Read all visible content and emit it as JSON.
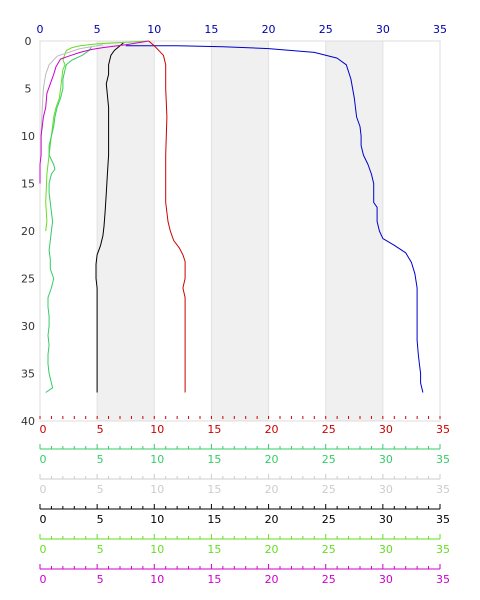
{
  "chart_data": {
    "type": "line",
    "title": "",
    "ylim": [
      0,
      40
    ],
    "y_ticks": [
      "0",
      "5",
      "10",
      "15",
      "20",
      "25",
      "30",
      "35",
      "40"
    ],
    "y_inverted": true,
    "background_bands": [
      [
        5,
        10
      ],
      [
        15,
        20
      ],
      [
        25,
        30
      ]
    ],
    "top_axis": {
      "color": "#0000aa",
      "ticks": [
        "0",
        "5",
        "10",
        "15",
        "20",
        "25",
        "30",
        "35"
      ]
    },
    "bottom_axes": [
      {
        "name": "",
        "color": "#cc0000",
        "ticks": [
          "0",
          "5",
          "10",
          "15",
          "20",
          "25",
          "30",
          "35"
        ]
      },
      {
        "name": "",
        "color": "#33cc66",
        "ticks": [
          "0",
          "5",
          "10",
          "15",
          "20",
          "25",
          "30",
          "35"
        ]
      },
      {
        "name": "",
        "color": "#cccccc",
        "ticks": [
          "0",
          "5",
          "10",
          "15",
          "20",
          "25",
          "30",
          "35"
        ]
      },
      {
        "name": "",
        "color": "#000000",
        "ticks": [
          "0",
          "5",
          "10",
          "15",
          "20",
          "25",
          "30",
          "35"
        ]
      },
      {
        "name": "",
        "color": "#66dd22",
        "ticks": [
          "0",
          "5",
          "10",
          "15",
          "20",
          "25",
          "30",
          "35"
        ]
      },
      {
        "name": "",
        "color": "#cc00cc",
        "ticks": [
          "0",
          "5",
          "10",
          "15",
          "20",
          "25",
          "30",
          "35"
        ]
      }
    ],
    "series": [
      {
        "color": "#0000cc",
        "points": [
          [
            7.5,
            0.5
          ],
          [
            12,
            0.5
          ],
          [
            16,
            0.6
          ],
          [
            20,
            0.8
          ],
          [
            24,
            1.2
          ],
          [
            26,
            1.8
          ],
          [
            26.8,
            2.5
          ],
          [
            27.2,
            4
          ],
          [
            27.5,
            6
          ],
          [
            27.7,
            8
          ],
          [
            28,
            9
          ],
          [
            28.1,
            10
          ],
          [
            28.1,
            11
          ],
          [
            28.3,
            12
          ],
          [
            28.7,
            13
          ],
          [
            29,
            14
          ],
          [
            29.2,
            15
          ],
          [
            29.2,
            16
          ],
          [
            29.2,
            17
          ],
          [
            29.5,
            17.5
          ],
          [
            29.5,
            18
          ],
          [
            29.5,
            19
          ],
          [
            29.7,
            20
          ],
          [
            30,
            20.8
          ],
          [
            31,
            21.5
          ],
          [
            32,
            22.3
          ],
          [
            32.5,
            23.3
          ],
          [
            32.8,
            24.5
          ],
          [
            33,
            26
          ],
          [
            33,
            28
          ],
          [
            33,
            30
          ],
          [
            33,
            31.5
          ],
          [
            33.1,
            33
          ],
          [
            33.2,
            34
          ],
          [
            33.3,
            35
          ],
          [
            33.3,
            36
          ],
          [
            33.5,
            37
          ]
        ]
      },
      {
        "color": "#cc0000",
        "points": [
          [
            9.5,
            0
          ],
          [
            10,
            0.5
          ],
          [
            10.8,
            1.5
          ],
          [
            11,
            2.5
          ],
          [
            11,
            5
          ],
          [
            11.1,
            8
          ],
          [
            11,
            12
          ],
          [
            11,
            15
          ],
          [
            11,
            17
          ],
          [
            11.2,
            19
          ],
          [
            11.4,
            20
          ],
          [
            11.7,
            21
          ],
          [
            12.2,
            21.8
          ],
          [
            12.5,
            22.5
          ],
          [
            12.7,
            23.2
          ],
          [
            12.7,
            25
          ],
          [
            12.5,
            26
          ],
          [
            12.7,
            27
          ],
          [
            12.7,
            30
          ],
          [
            12.7,
            33
          ],
          [
            12.7,
            35
          ],
          [
            12.7,
            37
          ]
        ]
      },
      {
        "color": "#000000",
        "points": [
          [
            7.3,
            0.2
          ],
          [
            7,
            0.5
          ],
          [
            6.5,
            1
          ],
          [
            6.2,
            1.5
          ],
          [
            6,
            2.5
          ],
          [
            6,
            3.5
          ],
          [
            5.8,
            4.5
          ],
          [
            6,
            7
          ],
          [
            6,
            10
          ],
          [
            6,
            12
          ],
          [
            5.9,
            14
          ],
          [
            5.8,
            16
          ],
          [
            5.7,
            18
          ],
          [
            5.6,
            19.5
          ],
          [
            5.5,
            20.5
          ],
          [
            5.3,
            21.5
          ],
          [
            5,
            22.5
          ],
          [
            4.9,
            23.5
          ],
          [
            4.9,
            25
          ],
          [
            5,
            26
          ],
          [
            5,
            28
          ],
          [
            5,
            31
          ],
          [
            5,
            34
          ],
          [
            5,
            37
          ]
        ]
      },
      {
        "color": "#66dd22",
        "points": [
          [
            9.5,
            0
          ],
          [
            5,
            0.3
          ],
          [
            3.5,
            0.5
          ],
          [
            2.8,
            0.7
          ],
          [
            2.3,
            1
          ],
          [
            2,
            2
          ],
          [
            2.2,
            2.5
          ],
          [
            2,
            3
          ],
          [
            1.8,
            5
          ],
          [
            1.7,
            6
          ],
          [
            1.4,
            7
          ],
          [
            1.2,
            8
          ],
          [
            1,
            10
          ],
          [
            0.8,
            12
          ],
          [
            0.6,
            14
          ],
          [
            0.5,
            17
          ],
          [
            0.6,
            19
          ],
          [
            0.5,
            20
          ]
        ]
      },
      {
        "color": "#33cc66",
        "points": [
          [
            4.5,
            0.6
          ],
          [
            4.3,
            1
          ],
          [
            3.7,
            1.5
          ],
          [
            2.8,
            2
          ],
          [
            2.5,
            2.3
          ],
          [
            2.3,
            2.5
          ],
          [
            2.2,
            3
          ],
          [
            2,
            4
          ],
          [
            2,
            5
          ],
          [
            1.8,
            6
          ],
          [
            1.5,
            7
          ],
          [
            1.3,
            8
          ],
          [
            1.2,
            9
          ],
          [
            1,
            10
          ],
          [
            0.8,
            11
          ],
          [
            0.8,
            12
          ],
          [
            1.2,
            13
          ],
          [
            1.3,
            13.5
          ],
          [
            1,
            14
          ],
          [
            0.8,
            15
          ],
          [
            0.8,
            16
          ],
          [
            0.9,
            17
          ],
          [
            1,
            18
          ],
          [
            1.1,
            19
          ],
          [
            1,
            20
          ],
          [
            0.9,
            21
          ],
          [
            0.8,
            22
          ],
          [
            0.9,
            23
          ],
          [
            0.9,
            24
          ],
          [
            1.2,
            25
          ],
          [
            1,
            26
          ],
          [
            0.7,
            27
          ],
          [
            0.7,
            28
          ],
          [
            0.8,
            29
          ],
          [
            0.8,
            30
          ],
          [
            0.7,
            31
          ],
          [
            0.8,
            32
          ],
          [
            0.7,
            33
          ],
          [
            0.7,
            34
          ],
          [
            0.8,
            35
          ],
          [
            1,
            36
          ],
          [
            1.1,
            36.5
          ],
          [
            0.5,
            37
          ]
        ]
      },
      {
        "color": "#bbbbbb",
        "points": [
          [
            5.5,
            0.4
          ],
          [
            4.5,
            0.6
          ],
          [
            3.5,
            0.8
          ],
          [
            2.5,
            1.2
          ],
          [
            1.5,
            1.6
          ],
          [
            0.8,
            2.5
          ],
          [
            0.5,
            3.5
          ],
          [
            0.3,
            5
          ],
          [
            0.2,
            7
          ],
          [
            0.1,
            10
          ]
        ]
      },
      {
        "color": "#cc00cc",
        "points": [
          [
            9.5,
            0
          ],
          [
            7.5,
            0.4
          ],
          [
            5.5,
            0.7
          ],
          [
            4.5,
            0.9
          ],
          [
            3.5,
            1.2
          ],
          [
            2.5,
            1.6
          ],
          [
            1.8,
            1.9
          ],
          [
            1.6,
            2.3
          ],
          [
            1.4,
            2.7
          ],
          [
            1.2,
            3.5
          ],
          [
            0.9,
            4.5
          ],
          [
            0.6,
            5.5
          ],
          [
            0.5,
            7
          ],
          [
            0.3,
            8
          ],
          [
            0.1,
            10
          ],
          [
            0.1,
            12
          ],
          [
            0,
            13
          ],
          [
            0,
            15
          ]
        ]
      }
    ]
  }
}
